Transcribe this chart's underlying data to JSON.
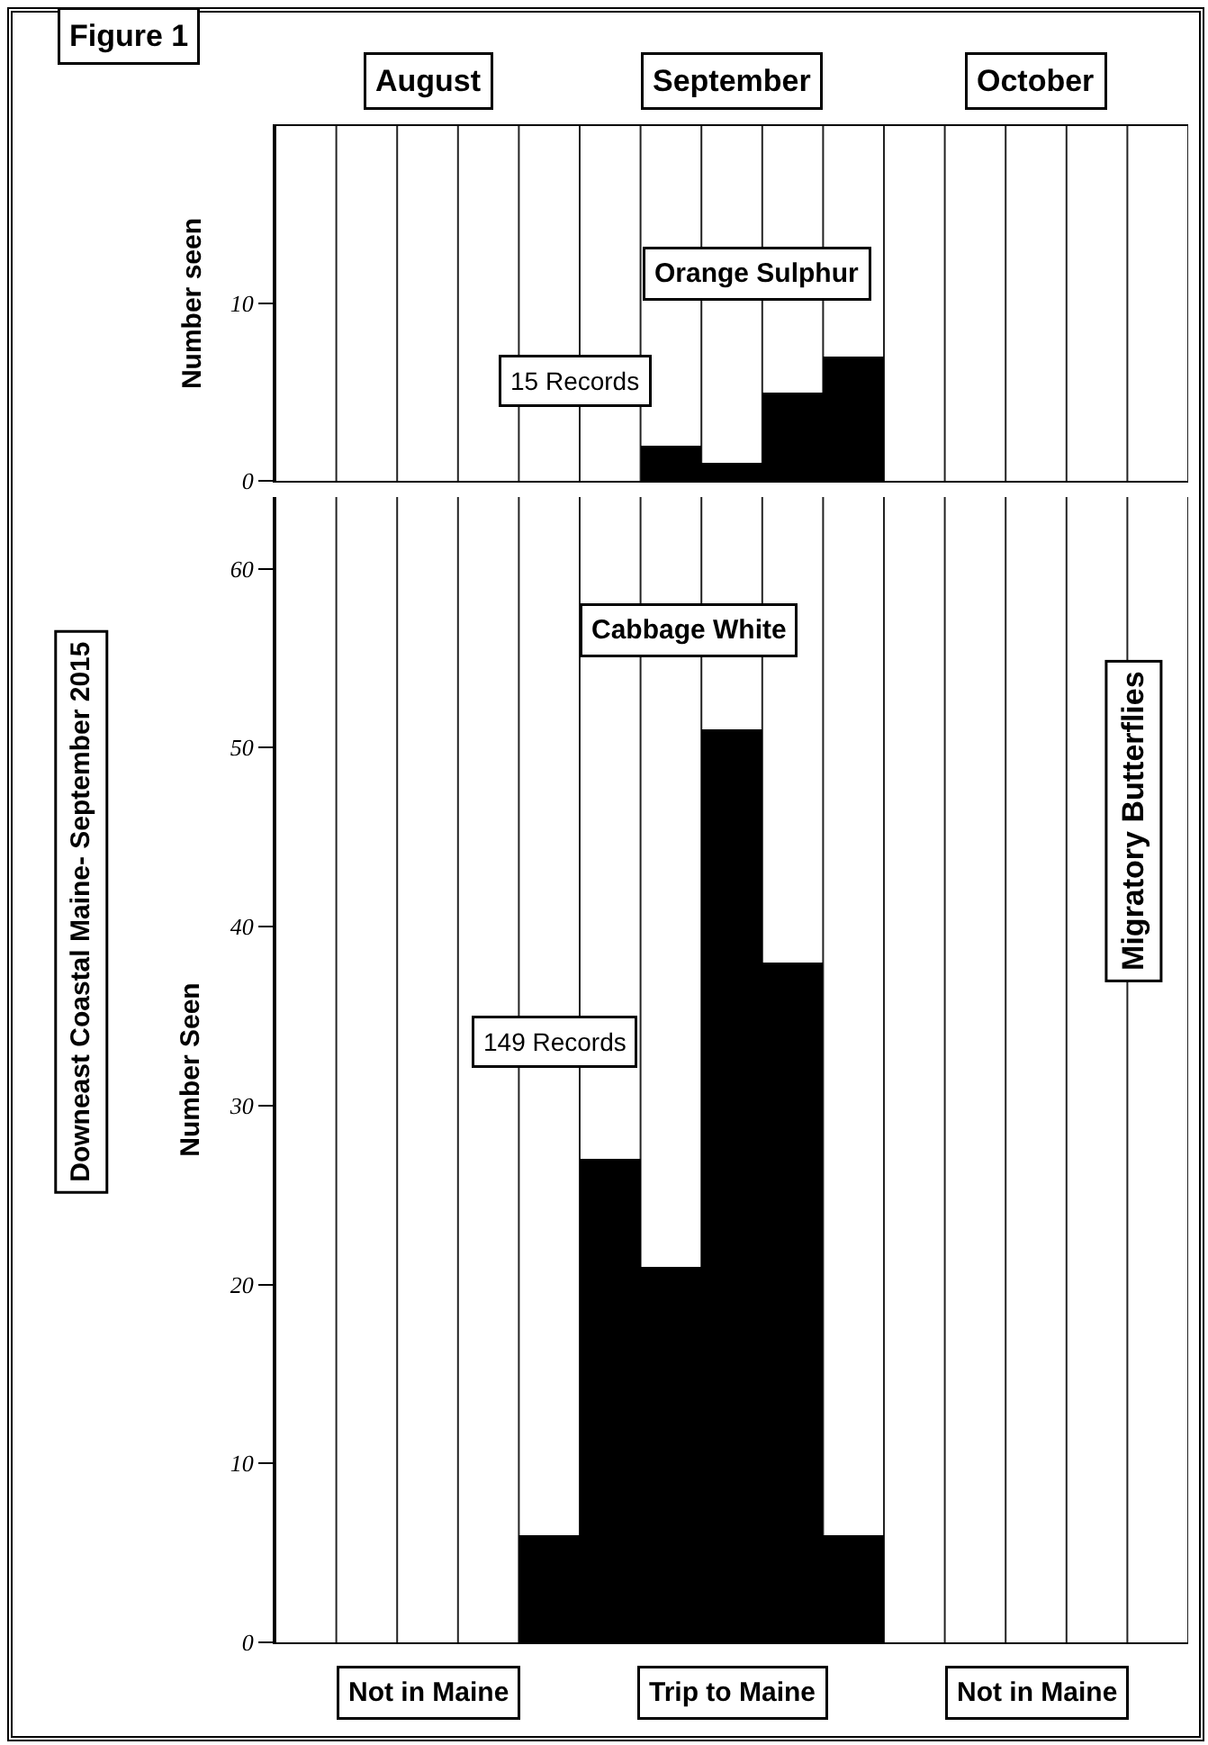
{
  "chart_data": [
    {
      "type": "bar",
      "title": "Orange Sulphur",
      "ylabel": "Number seen",
      "annotations": [
        "Figure 1",
        "August",
        "September",
        "October",
        "15 Records"
      ],
      "categories": [
        null,
        null,
        null,
        null,
        null,
        null,
        null,
        null,
        null,
        null,
        null,
        null,
        null,
        null,
        null
      ],
      "values": [
        null,
        null,
        null,
        null,
        null,
        null,
        2,
        1,
        5,
        7,
        null,
        null,
        null,
        null,
        null
      ],
      "color": "#000000",
      "ylim": [
        0,
        20
      ],
      "yticks": [
        0,
        10
      ],
      "grid": "x",
      "tick_labels": "y"
    },
    {
      "type": "bar",
      "title": "Cabbage White",
      "ylabel": "Number Seen",
      "annotations": [
        "149 Records",
        "Not in Maine",
        "Trip to Maine",
        "Not in Maine",
        "Downeast Coastal Maine- September 2015",
        "Migratory Butterflies"
      ],
      "categories": [
        null,
        null,
        null,
        null,
        null,
        null,
        null,
        null,
        null,
        null,
        null,
        null,
        null,
        null,
        null
      ],
      "values": [
        null,
        null,
        null,
        null,
        6,
        27,
        21,
        51,
        38,
        6,
        null,
        null,
        null,
        null,
        null
      ],
      "color": "#000000",
      "ylim": [
        0,
        64
      ],
      "yticks": [
        0,
        10,
        20,
        30,
        40,
        50,
        60
      ],
      "grid": "x",
      "tick_labels": "y"
    }
  ]
}
